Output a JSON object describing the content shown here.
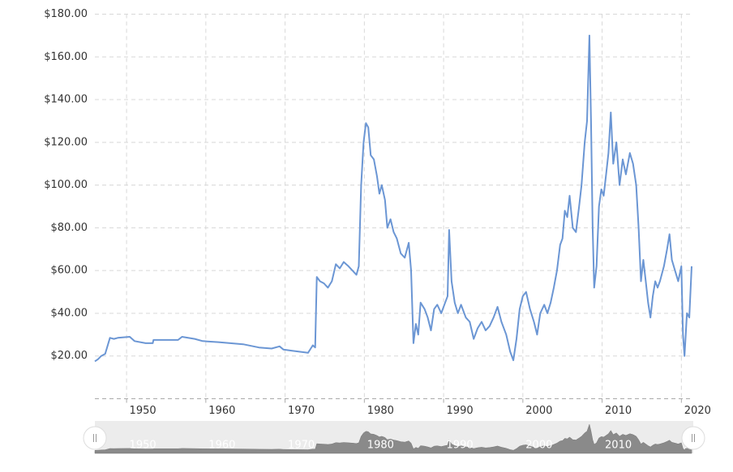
{
  "chart_data": {
    "type": "line",
    "x": [
      1946.0,
      1946.4,
      1946.8,
      1947.3,
      1947.9,
      1948.4,
      1948.9,
      1950.4,
      1951.0,
      1952.4,
      1953.3,
      1953.4,
      1956.5,
      1957.0,
      1958.6,
      1959.6,
      1961.6,
      1964.7,
      1966.7,
      1968.3,
      1969.3,
      1969.8,
      1970.8,
      1972.9,
      1973.5,
      1973.8,
      1974.0,
      1974.4,
      1974.9,
      1975.4,
      1975.9,
      1976.4,
      1976.9,
      1977.4,
      1978.0,
      1978.5,
      1979.0,
      1979.3,
      1979.6,
      1979.9,
      1980.2,
      1980.5,
      1980.8,
      1981.2,
      1981.6,
      1981.9,
      1982.2,
      1982.6,
      1982.9,
      1983.3,
      1983.7,
      1984.1,
      1984.6,
      1985.1,
      1985.6,
      1985.9,
      1986.2,
      1986.5,
      1986.8,
      1987.1,
      1987.6,
      1988.0,
      1988.4,
      1988.8,
      1989.2,
      1989.7,
      1990.2,
      1990.5,
      1990.7,
      1991.0,
      1991.4,
      1991.8,
      1992.2,
      1992.8,
      1993.3,
      1993.8,
      1994.3,
      1994.8,
      1995.3,
      1995.8,
      1996.3,
      1996.8,
      1997.3,
      1997.9,
      1998.4,
      1998.8,
      1999.2,
      1999.6,
      2000.0,
      2000.4,
      2000.9,
      2001.4,
      2001.8,
      2002.2,
      2002.7,
      2003.1,
      2003.5,
      2003.9,
      2004.3,
      2004.7,
      2005.0,
      2005.3,
      2005.6,
      2005.9,
      2006.3,
      2006.7,
      2007.1,
      2007.4,
      2007.8,
      2008.1,
      2008.4,
      2008.6,
      2008.8,
      2009.0,
      2009.3,
      2009.6,
      2009.9,
      2010.2,
      2010.5,
      2010.8,
      2011.1,
      2011.4,
      2011.8,
      2012.2,
      2012.6,
      2013.0,
      2013.5,
      2013.9,
      2014.3,
      2014.6,
      2014.9,
      2015.2,
      2015.5,
      2015.8,
      2016.1,
      2016.4,
      2016.7,
      2017.0,
      2017.3,
      2017.8,
      2018.2,
      2018.5,
      2018.8,
      2019.2,
      2019.6,
      2020.0,
      2020.2,
      2020.4,
      2020.7,
      2021.0,
      2021.3
    ],
    "series": [
      {
        "color": "#6b96d4",
        "values": [
          17.5,
          18.5,
          20,
          21,
          28.5,
          28,
          28.5,
          29,
          27,
          26,
          26,
          27.5,
          27.5,
          29,
          28,
          27,
          26.5,
          25.5,
          24,
          23.5,
          24.5,
          23,
          22.5,
          21.5,
          25,
          24,
          57,
          55,
          54,
          52,
          55,
          63,
          61,
          64,
          62,
          60,
          58,
          62,
          100,
          120,
          129,
          127,
          114,
          112,
          104,
          96,
          100,
          93,
          80,
          84,
          78,
          75,
          68,
          66,
          73,
          60,
          26,
          35,
          30,
          45,
          42,
          38,
          32,
          42,
          44,
          40,
          45,
          48,
          79,
          55,
          45,
          40,
          44,
          38,
          36,
          28,
          33,
          36,
          32,
          34,
          38,
          43,
          36,
          30,
          22,
          18,
          28,
          42,
          48,
          50,
          42,
          36,
          30,
          40,
          44,
          40,
          45,
          52,
          60,
          72,
          75,
          88,
          85,
          95,
          80,
          78,
          90,
          100,
          120,
          130,
          170,
          130,
          80,
          52,
          62,
          90,
          98,
          95,
          105,
          115,
          134,
          110,
          120,
          100,
          112,
          105,
          115,
          110,
          100,
          80,
          55,
          65,
          55,
          45,
          38,
          48,
          55,
          52,
          55,
          62,
          70,
          77,
          65,
          60,
          55,
          62,
          30,
          20,
          40,
          38,
          62
        ]
      }
    ],
    "xlim": [
      1946.0,
      2021.5
    ],
    "xticks": [
      1950,
      1960,
      1970,
      1980,
      1990,
      2000,
      2010,
      2020
    ],
    "ylim": [
      0,
      180
    ],
    "yticks": [
      {
        "value": 20,
        "label": "$20.00"
      },
      {
        "value": 40,
        "label": "$40.00"
      },
      {
        "value": 60,
        "label": "$60.00"
      },
      {
        "value": 80,
        "label": "$80.00"
      },
      {
        "value": 100,
        "label": "$100.00"
      },
      {
        "value": 120,
        "label": "$120.00"
      },
      {
        "value": 140,
        "label": "$140.00"
      },
      {
        "value": 160,
        "label": "$160.00"
      },
      {
        "value": 180,
        "label": "$180.00"
      }
    ],
    "grid": true
  }
}
